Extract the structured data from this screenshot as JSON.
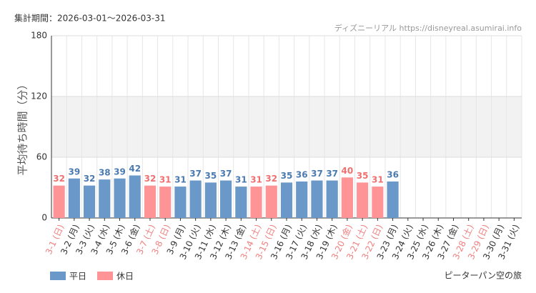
{
  "chart_data": {
    "type": "bar",
    "subtitle": "集計期間：2026-03-01～2026-03-31",
    "source": "ディズニーリアル https://disneyreal.asumirai.info",
    "ylabel": "平均待ち時間（分）",
    "caption": "ピーターパン空の旅",
    "categories": [
      "3-1 (日)",
      "3-2 (月)",
      "3-3 (火)",
      "3-4 (水)",
      "3-5 (木)",
      "3-6 (金)",
      "3-7 (土)",
      "3-8 (日)",
      "3-9 (月)",
      "3-10 (火)",
      "3-11 (水)",
      "3-12 (木)",
      "3-13 (金)",
      "3-14 (土)",
      "3-15 (日)",
      "3-16 (月)",
      "3-17 (火)",
      "3-18 (水)",
      "3-19 (木)",
      "3-20 (金)",
      "3-21 (土)",
      "3-22 (日)",
      "3-23 (月)",
      "3-24 (火)",
      "3-25 (水)",
      "3-26 (木)",
      "3-27 (金)",
      "3-28 (土)",
      "3-29 (日)",
      "3-30 (月)",
      "3-31 (火)"
    ],
    "category_label_colors": [
      "#f08080",
      "#333333",
      "#333333",
      "#333333",
      "#333333",
      "#333333",
      "#f08080",
      "#f08080",
      "#333333",
      "#333333",
      "#333333",
      "#333333",
      "#333333",
      "#f08080",
      "#f08080",
      "#333333",
      "#333333",
      "#333333",
      "#333333",
      "#f08080",
      "#f08080",
      "#f08080",
      "#333333",
      "#333333",
      "#333333",
      "#333333",
      "#333333",
      "#f08080",
      "#f08080",
      "#333333",
      "#333333"
    ],
    "series": [
      {
        "name": "平日",
        "color": "#6a98c8",
        "label_color": "#4a7ab0",
        "values": [
          null,
          39,
          32,
          38,
          39,
          42,
          null,
          null,
          31,
          37,
          35,
          37,
          31,
          null,
          null,
          35,
          36,
          37,
          37,
          null,
          null,
          null,
          36,
          null,
          null,
          null,
          null,
          null,
          null,
          null,
          null
        ]
      },
      {
        "name": "休日",
        "color": "#ff9496",
        "label_color": "#f07070",
        "values": [
          32,
          null,
          null,
          null,
          null,
          null,
          32,
          31,
          null,
          null,
          null,
          null,
          null,
          31,
          32,
          null,
          null,
          null,
          null,
          40,
          35,
          31,
          null,
          null,
          null,
          null,
          null,
          null,
          null,
          null,
          null
        ]
      }
    ],
    "ylim": [
      0,
      180
    ],
    "yticks": [
      0,
      60,
      120,
      180
    ],
    "grid": true
  }
}
